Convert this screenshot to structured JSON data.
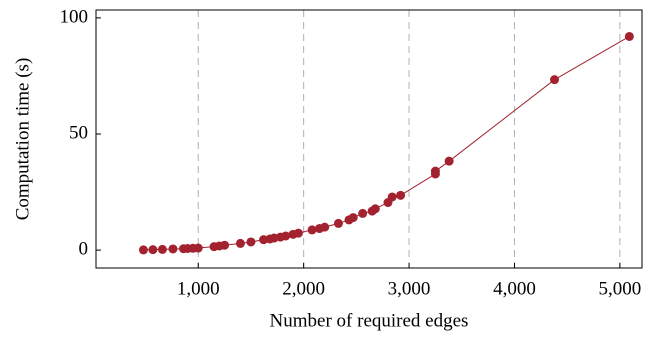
{
  "chart_data": {
    "type": "line",
    "x_label": "Number of required edges",
    "y_label": "Computation time (s)",
    "series": [
      {
        "name": "Computation time",
        "color": "#a3222f",
        "x": [
          480,
          570,
          660,
          760,
          860,
          900,
          950,
          1000,
          1150,
          1200,
          1250,
          1400,
          1500,
          1620,
          1680,
          1720,
          1780,
          1830,
          1900,
          1950,
          2080,
          2150,
          2200,
          2330,
          2430,
          2470,
          2560,
          2650,
          2680,
          2800,
          2840,
          2920,
          3250,
          3250,
          3380,
          4380,
          5090
        ],
        "values": [
          0.1,
          0.2,
          0.3,
          0.5,
          0.6,
          0.7,
          0.8,
          0.9,
          1.5,
          1.8,
          2.1,
          2.9,
          3.5,
          4.5,
          4.8,
          5.2,
          5.6,
          6.1,
          6.8,
          7.3,
          8.7,
          9.3,
          9.9,
          11.5,
          13,
          14,
          15.8,
          16.8,
          17.8,
          20.5,
          22.9,
          23.6,
          32.8,
          34,
          38.3,
          73.4,
          92
        ]
      }
    ],
    "xlim": [
      30,
      5210
    ],
    "ylim": [
      -7.7,
      103.4
    ],
    "xticks": [
      {
        "value": 1000,
        "label": "1,000"
      },
      {
        "value": 2000,
        "label": "2,000"
      },
      {
        "value": 3000,
        "label": "3,000"
      },
      {
        "value": 4000,
        "label": "4,000"
      },
      {
        "value": 5000,
        "label": "5,000"
      }
    ],
    "yticks": [
      0,
      50,
      100
    ],
    "grid": "x"
  }
}
